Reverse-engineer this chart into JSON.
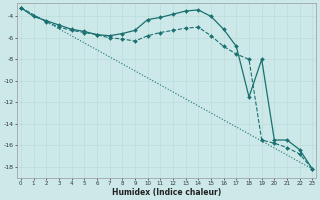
{
  "bg_color": "#cce8e8",
  "line_color": "#1a7070",
  "xlabel": "Humidex (Indice chaleur)",
  "xlim_min": -0.3,
  "xlim_max": 23.3,
  "ylim_min": -19.0,
  "ylim_max": -2.8,
  "yticks": [
    -18,
    -16,
    -14,
    -12,
    -10,
    -8,
    -6,
    -4
  ],
  "xticks": [
    0,
    1,
    2,
    3,
    4,
    5,
    6,
    7,
    8,
    9,
    10,
    11,
    12,
    13,
    14,
    15,
    16,
    17,
    18,
    19,
    20,
    21,
    22,
    23
  ],
  "line1_x": [
    0,
    1,
    2,
    3,
    4,
    5,
    6,
    7,
    8,
    9,
    10,
    11,
    12,
    13,
    14,
    15,
    16,
    17,
    18,
    19,
    20,
    21,
    22,
    23
  ],
  "line1_y": [
    -3.2,
    -4.0,
    -4.4,
    -4.8,
    -5.2,
    -5.4,
    -5.7,
    -5.8,
    -5.6,
    -5.3,
    -4.3,
    -4.1,
    -3.8,
    -3.5,
    -3.4,
    -4.0,
    -5.2,
    -6.8,
    -11.5,
    -8.0,
    -15.5,
    -15.5,
    -16.4,
    -18.2
  ],
  "line2_x": [
    0,
    2,
    3,
    4,
    5,
    6,
    7,
    8,
    9,
    10,
    11,
    12,
    13,
    14,
    15,
    16,
    17,
    18,
    19,
    20,
    21,
    22,
    23
  ],
  "line2_y": [
    -3.2,
    -4.5,
    -5.0,
    -5.3,
    -5.5,
    -5.7,
    -6.0,
    -6.1,
    -6.3,
    -5.8,
    -5.5,
    -5.3,
    -5.1,
    -5.0,
    -5.8,
    -6.8,
    -7.5,
    -8.0,
    -15.5,
    -15.8,
    -16.2,
    -16.8,
    -18.2
  ],
  "line3_x": [
    0,
    23
  ],
  "line3_y": [
    -3.2,
    -18.2
  ]
}
